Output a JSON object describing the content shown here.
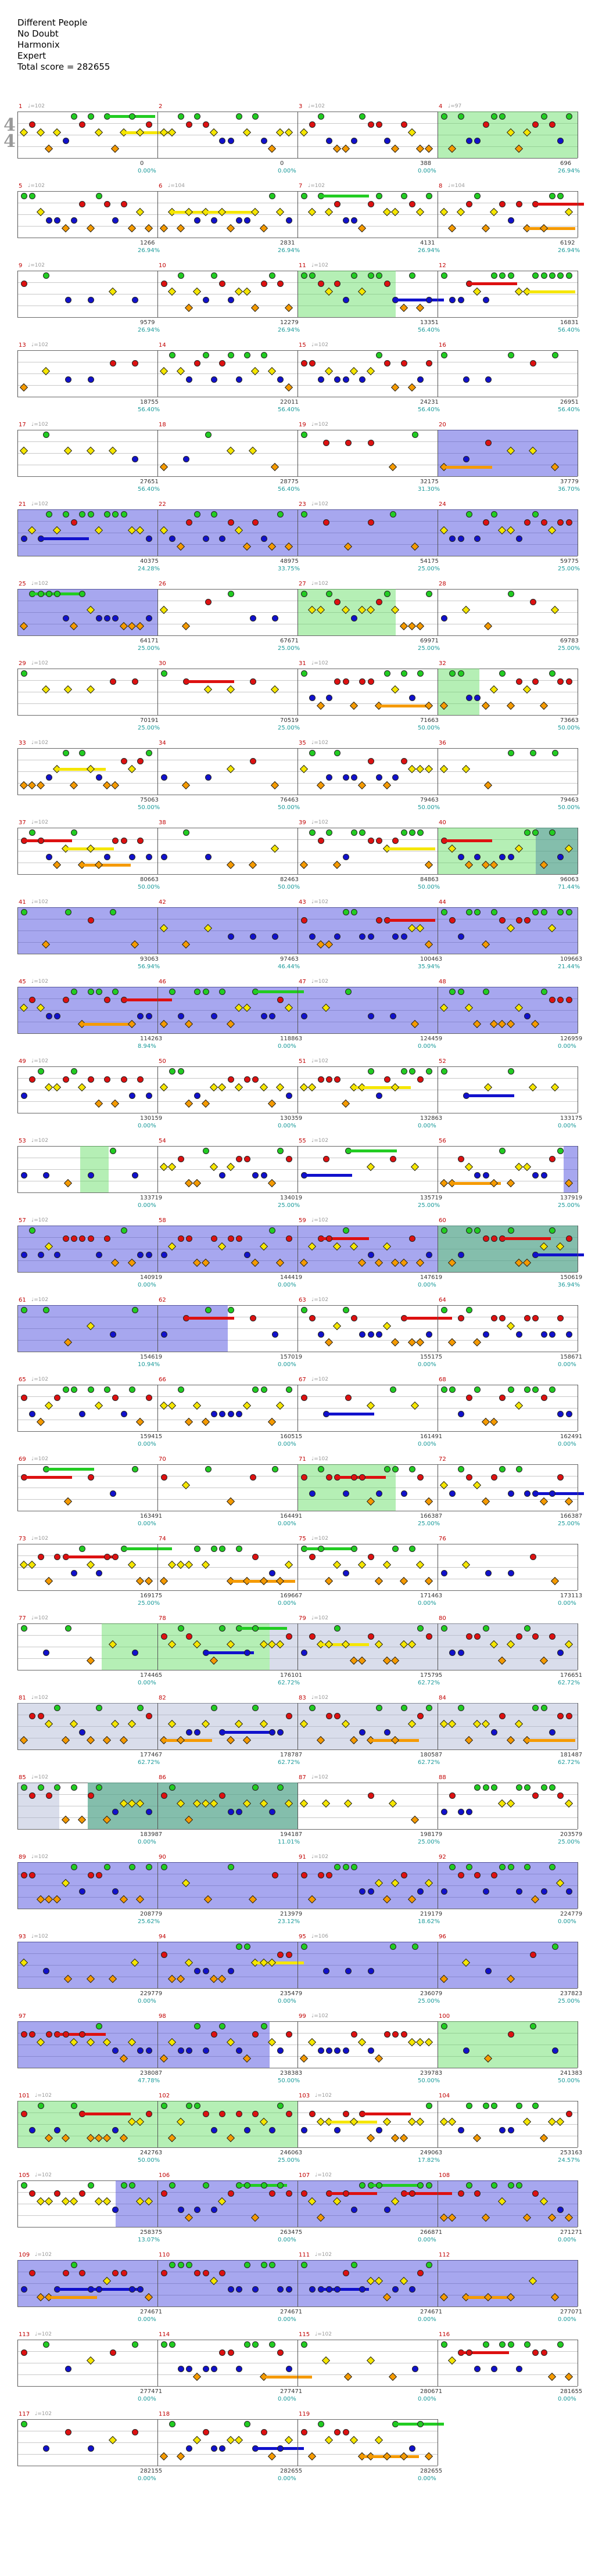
{
  "song": {
    "title": "Different People",
    "artist": "No Doubt",
    "charter": "Harmonix",
    "difficulty": "Expert",
    "total_score_text": "Total score = 282655"
  },
  "colors": {
    "green": "#22cc22",
    "red": "#dd1111",
    "yellow": "#f5e600",
    "blue": "#1111cc",
    "orange": "#f59a00",
    "overdrive": "#5adc5a",
    "solo": "#3c3cdc",
    "bre": "#aab4d2"
  },
  "time_signature": {
    "top": "4",
    "bottom": "4"
  },
  "rows": [
    {
      "measures": [
        {
          "num": "1",
          "tempo": "♩=102",
          "score": "0",
          "pct": "0.00%"
        },
        {
          "num": "2",
          "tempo": "",
          "score": "0",
          "pct": "0.00%"
        },
        {
          "num": "3",
          "tempo": "♩=102",
          "score": "388",
          "pct": "0.00%"
        },
        {
          "num": "4",
          "tempo": "♩=97",
          "score": "696",
          "pct": "26.94%"
        }
      ]
    },
    {
      "measures": [
        {
          "num": "5",
          "tempo": "♩=102",
          "score": "1266",
          "pct": "26.94%"
        },
        {
          "num": "6",
          "tempo": "♩=104",
          "score": "2831",
          "pct": "26.94%"
        },
        {
          "num": "7",
          "tempo": "♩=102",
          "score": "4131",
          "pct": "26.94%"
        },
        {
          "num": "8",
          "tempo": "♩=104",
          "score": "6192",
          "pct": "26.94%"
        }
      ]
    },
    {
      "measures": [
        {
          "num": "9",
          "tempo": "♩=102",
          "score": "9579",
          "pct": "26.94%"
        },
        {
          "num": "10",
          "tempo": "",
          "score": "12279",
          "pct": "26.94%"
        },
        {
          "num": "11",
          "tempo": "♩=102",
          "score": "13351",
          "pct": "56.40%"
        },
        {
          "num": "12",
          "tempo": "",
          "score": "16831",
          "pct": "56.40%"
        }
      ]
    },
    {
      "measures": [
        {
          "num": "13",
          "tempo": "♩=102",
          "score": "18755",
          "pct": "56.40%"
        },
        {
          "num": "14",
          "tempo": "",
          "score": "22011",
          "pct": "56.40%"
        },
        {
          "num": "15",
          "tempo": "♩=102",
          "score": "24231",
          "pct": "56.40%"
        },
        {
          "num": "16",
          "tempo": "",
          "score": "26951",
          "pct": "56.40%"
        }
      ]
    },
    {
      "measures": [
        {
          "num": "17",
          "tempo": "♩=102",
          "score": "27651",
          "pct": "56.40%"
        },
        {
          "num": "18",
          "tempo": "",
          "score": "28775",
          "pct": "56.40%"
        },
        {
          "num": "19",
          "tempo": "♩=102",
          "score": "32175",
          "pct": "31.30%"
        },
        {
          "num": "20",
          "tempo": "",
          "score": "37779",
          "pct": "36.70%"
        }
      ]
    },
    {
      "measures": [
        {
          "num": "21",
          "tempo": "♩=102",
          "score": "40375",
          "pct": "24.28%"
        },
        {
          "num": "22",
          "tempo": "",
          "score": "48975",
          "pct": "33.75%"
        },
        {
          "num": "23",
          "tempo": "♩=102",
          "score": "54175",
          "pct": "25.00%"
        },
        {
          "num": "24",
          "tempo": "",
          "score": "59775",
          "pct": "25.00%"
        }
      ]
    },
    {
      "measures": [
        {
          "num": "25",
          "tempo": "♩=102",
          "score": "64171",
          "pct": "25.00%"
        },
        {
          "num": "26",
          "tempo": "",
          "score": "67671",
          "pct": "25.00%"
        },
        {
          "num": "27",
          "tempo": "♩=102",
          "score": "69971",
          "pct": "25.00%"
        },
        {
          "num": "28",
          "tempo": "",
          "score": "69783",
          "pct": "25.00%"
        }
      ]
    },
    {
      "measures": [
        {
          "num": "29",
          "tempo": "♩=102",
          "score": "70191",
          "pct": "25.00%"
        },
        {
          "num": "30",
          "tempo": "",
          "score": "70519",
          "pct": "25.00%"
        },
        {
          "num": "31",
          "tempo": "♩=102",
          "score": "71663",
          "pct": "50.00%"
        },
        {
          "num": "32",
          "tempo": "",
          "score": "73663",
          "pct": "50.00%"
        }
      ]
    },
    {
      "measures": [
        {
          "num": "33",
          "tempo": "♩=102",
          "score": "75063",
          "pct": "50.00%"
        },
        {
          "num": "34",
          "tempo": "",
          "score": "76463",
          "pct": "50.00%"
        },
        {
          "num": "35",
          "tempo": "♩=102",
          "score": "79463",
          "pct": "50.00%"
        },
        {
          "num": "36",
          "tempo": "",
          "score": "79463",
          "pct": "50.00%"
        }
      ]
    },
    {
      "measures": [
        {
          "num": "37",
          "tempo": "♩=102",
          "score": "80663",
          "pct": "50.00%"
        },
        {
          "num": "38",
          "tempo": "",
          "score": "82463",
          "pct": "50.00%"
        },
        {
          "num": "39",
          "tempo": "♩=102",
          "score": "84863",
          "pct": "50.00%"
        },
        {
          "num": "40",
          "tempo": "",
          "score": "96063",
          "pct": "71.44%"
        }
      ]
    },
    {
      "measures": [
        {
          "num": "41",
          "tempo": "♩=102",
          "score": "93063",
          "pct": "56.94%"
        },
        {
          "num": "42",
          "tempo": "",
          "score": "97463",
          "pct": "46.44%"
        },
        {
          "num": "43",
          "tempo": "♩=102",
          "score": "100463",
          "pct": "35.94%"
        },
        {
          "num": "44",
          "tempo": "",
          "score": "109663",
          "pct": "21.44%"
        }
      ]
    },
    {
      "measures": [
        {
          "num": "45",
          "tempo": "♩=102",
          "score": "114263",
          "pct": "8.94%"
        },
        {
          "num": "46",
          "tempo": "",
          "score": "118863",
          "pct": "0.00%"
        },
        {
          "num": "47",
          "tempo": "♩=102",
          "score": "124459",
          "pct": "0.00%"
        },
        {
          "num": "48",
          "tempo": "",
          "score": "126959",
          "pct": "0.00%"
        }
      ]
    },
    {
      "measures": [
        {
          "num": "49",
          "tempo": "♩=102",
          "score": "130159",
          "pct": "0.00%"
        },
        {
          "num": "50",
          "tempo": "",
          "score": "130359",
          "pct": "0.00%"
        },
        {
          "num": "51",
          "tempo": "♩=102",
          "score": "132863",
          "pct": "0.00%"
        },
        {
          "num": "52",
          "tempo": "",
          "score": "133175",
          "pct": "0.00%"
        }
      ]
    },
    {
      "measures": [
        {
          "num": "53",
          "tempo": "♩=102",
          "score": "133719",
          "pct": "0.00%"
        },
        {
          "num": "54",
          "tempo": "",
          "score": "134019",
          "pct": "25.00%"
        },
        {
          "num": "55",
          "tempo": "♩=102",
          "score": "135719",
          "pct": "25.00%"
        },
        {
          "num": "56",
          "tempo": "",
          "score": "137919",
          "pct": "25.00%"
        }
      ]
    },
    {
      "measures": [
        {
          "num": "57",
          "tempo": "♩=102",
          "score": "140919",
          "pct": "0.00%"
        },
        {
          "num": "58",
          "tempo": "",
          "score": "144419",
          "pct": "0.00%"
        },
        {
          "num": "59",
          "tempo": "♩=102",
          "score": "147619",
          "pct": "0.00%"
        },
        {
          "num": "60",
          "tempo": "",
          "score": "150619",
          "pct": "36.94%"
        }
      ]
    },
    {
      "measures": [
        {
          "num": "61",
          "tempo": "♩=102",
          "score": "154619",
          "pct": "10.94%"
        },
        {
          "num": "62",
          "tempo": "",
          "score": "157019",
          "pct": "0.00%"
        },
        {
          "num": "63",
          "tempo": "♩=102",
          "score": "155175",
          "pct": "0.00%"
        },
        {
          "num": "64",
          "tempo": "",
          "score": "158671",
          "pct": "0.00%"
        }
      ]
    },
    {
      "measures": [
        {
          "num": "65",
          "tempo": "♩=102",
          "score": "159415",
          "pct": "0.00%"
        },
        {
          "num": "66",
          "tempo": "",
          "score": "160515",
          "pct": "0.00%"
        },
        {
          "num": "67",
          "tempo": "♩=102",
          "score": "161491",
          "pct": "0.00%"
        },
        {
          "num": "68",
          "tempo": "",
          "score": "162491",
          "pct": "0.00%"
        }
      ]
    },
    {
      "measures": [
        {
          "num": "69",
          "tempo": "♩=102",
          "score": "163491",
          "pct": "0.00%"
        },
        {
          "num": "70",
          "tempo": "",
          "score": "164491",
          "pct": "0.00%"
        },
        {
          "num": "71",
          "tempo": "♩=102",
          "score": "166387",
          "pct": "25.00%"
        },
        {
          "num": "72",
          "tempo": "",
          "score": "166387",
          "pct": "25.00%"
        }
      ]
    },
    {
      "measures": [
        {
          "num": "73",
          "tempo": "♩=102",
          "score": "169175",
          "pct": "25.00%"
        },
        {
          "num": "74",
          "tempo": "",
          "score": "169667",
          "pct": "0.00%"
        },
        {
          "num": "75",
          "tempo": "♩=102",
          "score": "171463",
          "pct": "0.00%"
        },
        {
          "num": "76",
          "tempo": "",
          "score": "173113",
          "pct": "0.00%"
        }
      ]
    },
    {
      "measures": [
        {
          "num": "77",
          "tempo": "♩=102",
          "score": "174465",
          "pct": "0.00%"
        },
        {
          "num": "78",
          "tempo": "",
          "score": "176101",
          "pct": "62.72%"
        },
        {
          "num": "79",
          "tempo": "♩=102",
          "score": "175795",
          "pct": "62.72%"
        },
        {
          "num": "80",
          "tempo": "",
          "score": "176651",
          "pct": "62.72%"
        }
      ]
    },
    {
      "measures": [
        {
          "num": "81",
          "tempo": "♩=102",
          "score": "177467",
          "pct": "62.72%"
        },
        {
          "num": "82",
          "tempo": "",
          "score": "178787",
          "pct": "62.72%"
        },
        {
          "num": "83",
          "tempo": "♩=102",
          "score": "180587",
          "pct": "62.72%"
        },
        {
          "num": "84",
          "tempo": "",
          "score": "181487",
          "pct": "62.72%"
        }
      ]
    },
    {
      "measures": [
        {
          "num": "85",
          "tempo": "♩=102",
          "score": "183987",
          "pct": "0.00%"
        },
        {
          "num": "86",
          "tempo": "",
          "score": "194187",
          "pct": "11.01%"
        },
        {
          "num": "87",
          "tempo": "♩=102",
          "score": "198179",
          "pct": "25.00%"
        },
        {
          "num": "88",
          "tempo": "",
          "score": "203579",
          "pct": "25.00%"
        }
      ]
    },
    {
      "measures": [
        {
          "num": "89",
          "tempo": "♩=102",
          "score": "208779",
          "pct": "25.62%"
        },
        {
          "num": "90",
          "tempo": "",
          "score": "213979",
          "pct": "23.12%"
        },
        {
          "num": "91",
          "tempo": "♩=102",
          "score": "219179",
          "pct": "18.62%"
        },
        {
          "num": "92",
          "tempo": "",
          "score": "224779",
          "pct": "0.00%"
        }
      ]
    },
    {
      "measures": [
        {
          "num": "93",
          "tempo": "♩=102",
          "score": "229779",
          "pct": "0.00%"
        },
        {
          "num": "94",
          "tempo": "",
          "score": "235479",
          "pct": "0.00%"
        },
        {
          "num": "95",
          "tempo": "♩=106",
          "score": "236079",
          "pct": "25.00%"
        },
        {
          "num": "96",
          "tempo": "",
          "score": "237823",
          "pct": "25.00%"
        }
      ]
    },
    {
      "measures": [
        {
          "num": "97",
          "tempo": "",
          "score": "238087",
          "pct": "47.78%"
        },
        {
          "num": "98",
          "tempo": "",
          "score": "238383",
          "pct": "50.00%"
        },
        {
          "num": "99",
          "tempo": "♩=102",
          "score": "239783",
          "pct": "50.00%"
        },
        {
          "num": "100",
          "tempo": "",
          "score": "241383",
          "pct": "50.00%"
        }
      ]
    },
    {
      "measures": [
        {
          "num": "101",
          "tempo": "♩=102",
          "score": "242763",
          "pct": "50.00%"
        },
        {
          "num": "102",
          "tempo": "",
          "score": "246063",
          "pct": "25.00%"
        },
        {
          "num": "103",
          "tempo": "♩=102",
          "score": "249063",
          "pct": "17.82%"
        },
        {
          "num": "104",
          "tempo": "",
          "score": "253163",
          "pct": "24.57%"
        }
      ]
    },
    {
      "measures": [
        {
          "num": "105",
          "tempo": "♩=102",
          "score": "258375",
          "pct": "13.07%"
        },
        {
          "num": "106",
          "tempo": "",
          "score": "263475",
          "pct": "0.00%"
        },
        {
          "num": "107",
          "tempo": "♩=102",
          "score": "266871",
          "pct": "0.00%"
        },
        {
          "num": "108",
          "tempo": "",
          "score": "271271",
          "pct": "0.00%"
        }
      ]
    },
    {
      "measures": [
        {
          "num": "109",
          "tempo": "♩=102",
          "score": "274671",
          "pct": "0.00%"
        },
        {
          "num": "110",
          "tempo": "",
          "score": "274671",
          "pct": "0.00%"
        },
        {
          "num": "111",
          "tempo": "♩=102",
          "score": "274671",
          "pct": "0.00%"
        },
        {
          "num": "112",
          "tempo": "",
          "score": "277071",
          "pct": "0.00%"
        }
      ]
    },
    {
      "measures": [
        {
          "num": "113",
          "tempo": "♩=102",
          "score": "277471",
          "pct": "0.00%"
        },
        {
          "num": "114",
          "tempo": "",
          "score": "277471",
          "pct": "0.00%"
        },
        {
          "num": "115",
          "tempo": "♩=102",
          "score": "280671",
          "pct": "0.00%"
        },
        {
          "num": "116",
          "tempo": "",
          "score": "281655",
          "pct": "0.00%"
        }
      ]
    },
    {
      "measures": [
        {
          "num": "117",
          "tempo": "♩=102",
          "score": "282155",
          "pct": "0.00%"
        },
        {
          "num": "118",
          "tempo": "",
          "score": "282655",
          "pct": "0.00%"
        },
        {
          "num": "119",
          "tempo": "",
          "score": "282655",
          "pct": "0.00%"
        }
      ]
    }
  ]
}
